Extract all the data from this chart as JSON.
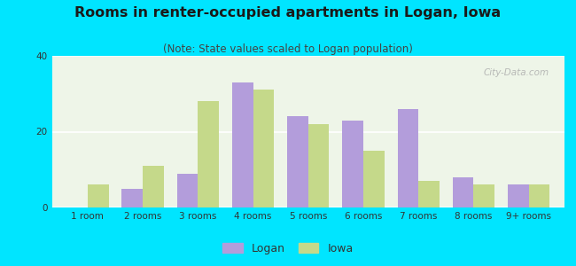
{
  "title": "Rooms in renter-occupied apartments in Logan, Iowa",
  "subtitle": "(Note: State values scaled to Logan population)",
  "categories": [
    "1 room",
    "2 rooms",
    "3 rooms",
    "4 rooms",
    "5 rooms",
    "6 rooms",
    "7 rooms",
    "8 rooms",
    "9+ rooms"
  ],
  "logan_values": [
    0,
    5,
    9,
    33,
    24,
    23,
    26,
    8,
    6
  ],
  "iowa_values": [
    6,
    11,
    28,
    31,
    22,
    15,
    7,
    6,
    6
  ],
  "logan_color": "#b39ddb",
  "iowa_color": "#c5d98a",
  "background_outer": "#00e5ff",
  "ylim": [
    0,
    40
  ],
  "yticks": [
    0,
    20,
    40
  ],
  "bar_width": 0.38,
  "legend_labels": [
    "Logan",
    "Iowa"
  ],
  "title_fontsize": 11.5,
  "subtitle_fontsize": 8.5,
  "tick_fontsize": 7.5
}
